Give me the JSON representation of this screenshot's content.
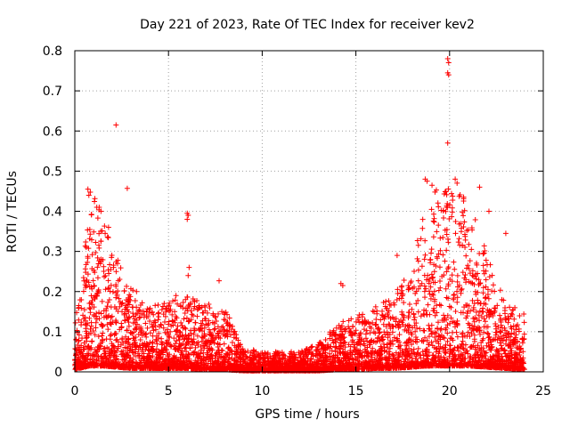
{
  "chart_data": {
    "type": "scatter",
    "title": "Day 221 of 2023, Rate Of TEC Index for receiver kev2",
    "xlabel": "GPS time / hours",
    "ylabel": "ROTI / TECUs",
    "xlim": [
      0,
      25
    ],
    "ylim": [
      0,
      0.8
    ],
    "xticks": [
      0,
      5,
      10,
      15,
      20,
      25
    ],
    "yticks": [
      0,
      0.1,
      0.2,
      0.3,
      0.4,
      0.5,
      0.6,
      0.7,
      0.8
    ],
    "xtick_labels": [
      "0",
      "5",
      "10",
      "15",
      "20",
      "25"
    ],
    "ytick_labels": [
      "0",
      "0.1",
      "0.2",
      "0.3",
      "0.4",
      "0.5",
      "0.6",
      "0.7",
      "0.8"
    ],
    "grid": true,
    "marker": "+",
    "color": "#ff0000",
    "series_profile": [
      {
        "hour": 0.0,
        "base": 0.02,
        "peak": 0.12
      },
      {
        "hour": 0.5,
        "base": 0.04,
        "peak": 0.3
      },
      {
        "hour": 0.8,
        "base": 0.05,
        "peak": 0.45
      },
      {
        "hour": 1.5,
        "base": 0.05,
        "peak": 0.41
      },
      {
        "hour": 2.2,
        "base": 0.04,
        "peak": 0.3
      },
      {
        "hour": 3.0,
        "base": 0.03,
        "peak": 0.22
      },
      {
        "hour": 4.0,
        "base": 0.03,
        "peak": 0.16
      },
      {
        "hour": 5.0,
        "base": 0.03,
        "peak": 0.18
      },
      {
        "hour": 6.0,
        "base": 0.03,
        "peak": 0.19
      },
      {
        "hour": 7.0,
        "base": 0.02,
        "peak": 0.17
      },
      {
        "hour": 8.0,
        "base": 0.02,
        "peak": 0.16
      },
      {
        "hour": 9.0,
        "base": 0.01,
        "peak": 0.06
      },
      {
        "hour": 10.0,
        "base": 0.01,
        "peak": 0.05
      },
      {
        "hour": 11.0,
        "base": 0.01,
        "peak": 0.05
      },
      {
        "hour": 12.0,
        "base": 0.01,
        "peak": 0.05
      },
      {
        "hour": 13.0,
        "base": 0.01,
        "peak": 0.07
      },
      {
        "hour": 14.0,
        "base": 0.02,
        "peak": 0.12
      },
      {
        "hour": 15.0,
        "base": 0.02,
        "peak": 0.14
      },
      {
        "hour": 16.0,
        "base": 0.03,
        "peak": 0.16
      },
      {
        "hour": 17.0,
        "base": 0.03,
        "peak": 0.2
      },
      {
        "hour": 18.0,
        "base": 0.04,
        "peak": 0.25
      },
      {
        "hour": 18.8,
        "base": 0.05,
        "peak": 0.48
      },
      {
        "hour": 19.5,
        "base": 0.05,
        "peak": 0.45
      },
      {
        "hour": 20.0,
        "base": 0.05,
        "peak": 0.47
      },
      {
        "hour": 21.0,
        "base": 0.05,
        "peak": 0.43
      },
      {
        "hour": 22.0,
        "base": 0.04,
        "peak": 0.3
      },
      {
        "hour": 23.0,
        "base": 0.03,
        "peak": 0.17
      },
      {
        "hour": 24.0,
        "base": 0.02,
        "peak": 0.15
      }
    ],
    "outliers": [
      {
        "x": 2.2,
        "y": 0.615
      },
      {
        "x": 2.8,
        "y": 0.457
      },
      {
        "x": 6.0,
        "y": 0.395
      },
      {
        "x": 6.05,
        "y": 0.39
      },
      {
        "x": 6.0,
        "y": 0.38
      },
      {
        "x": 6.1,
        "y": 0.26
      },
      {
        "x": 6.05,
        "y": 0.24
      },
      {
        "x": 7.7,
        "y": 0.227
      },
      {
        "x": 14.2,
        "y": 0.22
      },
      {
        "x": 14.3,
        "y": 0.215
      },
      {
        "x": 17.2,
        "y": 0.29
      },
      {
        "x": 19.9,
        "y": 0.78
      },
      {
        "x": 19.95,
        "y": 0.77
      },
      {
        "x": 19.9,
        "y": 0.745
      },
      {
        "x": 19.95,
        "y": 0.74
      },
      {
        "x": 19.9,
        "y": 0.57
      },
      {
        "x": 18.7,
        "y": 0.48
      },
      {
        "x": 18.8,
        "y": 0.475
      },
      {
        "x": 20.3,
        "y": 0.48
      },
      {
        "x": 20.4,
        "y": 0.47
      },
      {
        "x": 21.6,
        "y": 0.46
      },
      {
        "x": 22.1,
        "y": 0.4
      },
      {
        "x": 23.0,
        "y": 0.345
      },
      {
        "x": 1.3,
        "y": 0.41
      },
      {
        "x": 0.7,
        "y": 0.455
      },
      {
        "x": 0.75,
        "y": 0.44
      },
      {
        "x": 1.8,
        "y": 0.36
      },
      {
        "x": 5.4,
        "y": 0.19
      }
    ]
  }
}
